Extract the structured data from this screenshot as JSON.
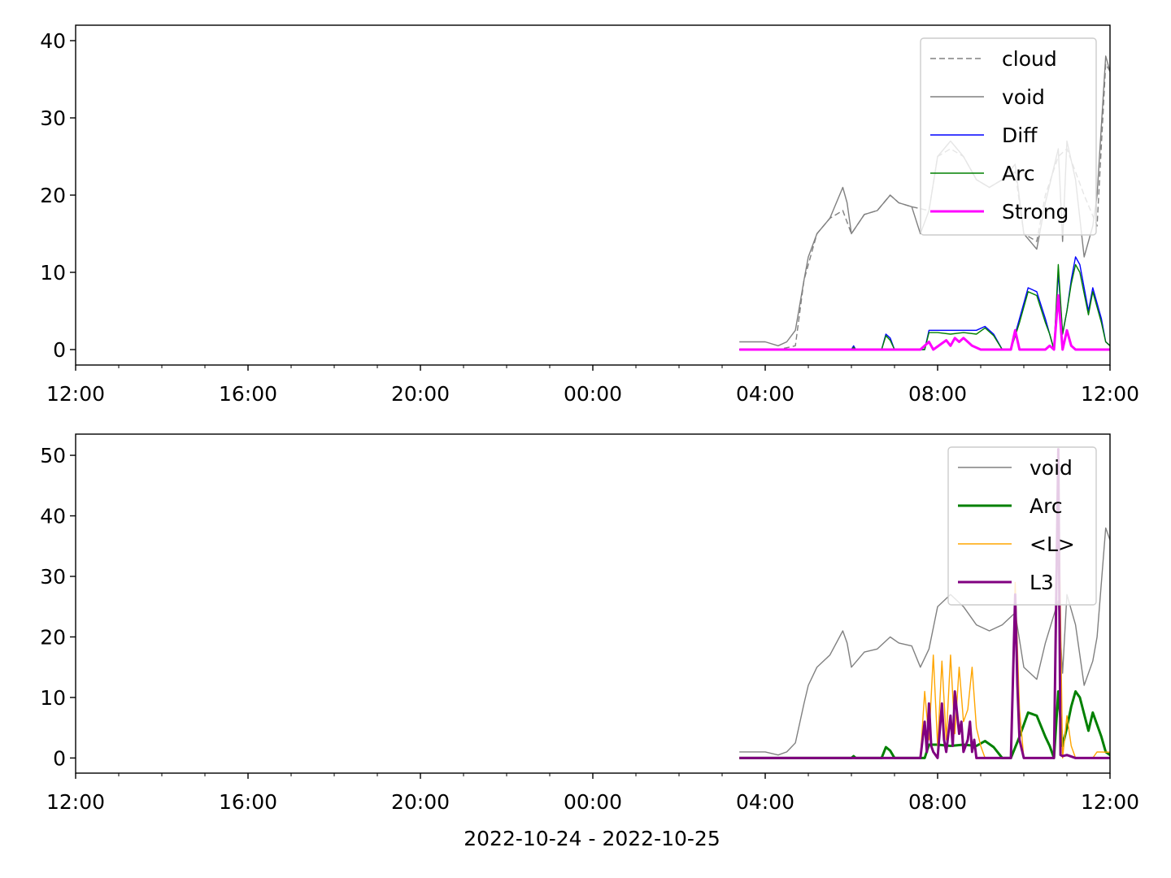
{
  "figure": {
    "xlabel": "2022-10-24 - 2022-10-25"
  },
  "chart_data": [
    {
      "type": "line",
      "x_ticks": [
        "12:00",
        "16:00",
        "20:00",
        "00:00",
        "04:00",
        "08:00",
        "12:00"
      ],
      "x_tick_hours": [
        0,
        4,
        8,
        12,
        16,
        20,
        24
      ],
      "xlim_hours_from_2022-10-24T12:00": [
        0,
        24
      ],
      "ylim": [
        -2,
        42
      ],
      "y_ticks": [
        0,
        10,
        20,
        30,
        40
      ],
      "legend_position": "top-right",
      "grid": false,
      "series": [
        {
          "name": "cloud",
          "color": "#808080",
          "style": "dashed",
          "width": 1.4,
          "x": [
            15.4,
            16.3,
            16.7,
            16.9,
            17.2,
            17.5,
            17.8,
            18.0,
            18.3,
            18.6,
            18.9,
            19.1,
            19.4,
            19.8,
            20.0,
            20.3,
            20.6,
            20.9,
            21.2,
            21.5,
            21.8,
            22.0,
            22.3,
            22.5,
            22.8,
            23.0,
            23.4,
            23.7,
            23.9,
            24.1,
            24.4,
            24.7,
            25.0,
            25.3,
            25.6,
            25.8,
            26.1,
            26.3,
            26.6,
            26.9,
            27.1,
            27.4,
            27.7,
            28.0,
            28.3,
            28.5,
            28.7,
            29.0,
            30.0
          ],
          "y": [
            0,
            0,
            0.5,
            9,
            15,
            17,
            18,
            15,
            17.5,
            18,
            20,
            19,
            18.5,
            18,
            25,
            26,
            25,
            22,
            21,
            22,
            23,
            15,
            14,
            20,
            25,
            26,
            20,
            16,
            37,
            35,
            30,
            26,
            22,
            20,
            18,
            15,
            15,
            20,
            28,
            32,
            31,
            32,
            35,
            32,
            22,
            12,
            2,
            0,
            0
          ]
        },
        {
          "name": "void",
          "color": "#808080",
          "style": "solid",
          "width": 1.4,
          "x": [
            15.4,
            16.0,
            16.3,
            16.5,
            16.7,
            16.9,
            17.0,
            17.2,
            17.5,
            17.8,
            17.9,
            18.0,
            18.3,
            18.6,
            18.9,
            19.1,
            19.4,
            19.6,
            19.8,
            20.0,
            20.3,
            20.6,
            20.9,
            21.2,
            21.5,
            21.8,
            22.0,
            22.3,
            22.5,
            22.8,
            22.9,
            23.0,
            23.2,
            23.4,
            23.6,
            23.7,
            23.9,
            24.0,
            24.1,
            24.4,
            24.7,
            25.0,
            25.3,
            25.6,
            25.8,
            26.1,
            26.3,
            26.6,
            26.9,
            27.1,
            27.4,
            27.6,
            27.7,
            27.9,
            28.0,
            28.3,
            28.5,
            28.7,
            28.9,
            29.0,
            30.0
          ],
          "y": [
            1,
            1,
            0.5,
            1,
            2.5,
            9,
            12,
            15,
            17,
            21,
            19,
            15,
            17.5,
            18,
            20,
            19,
            18.5,
            15,
            18,
            25,
            27,
            25,
            22,
            21,
            22,
            24,
            15,
            13,
            19,
            26,
            14,
            27,
            22,
            12,
            16,
            20,
            38,
            36,
            35,
            30,
            26,
            22,
            20,
            17,
            15,
            15,
            20,
            28,
            32,
            34,
            32,
            40,
            35,
            32,
            22,
            14,
            9,
            2,
            0,
            0,
            0
          ]
        },
        {
          "name": "Diff",
          "color": "#0000ff",
          "style": "solid",
          "width": 1.4,
          "x": [
            15.4,
            18.0,
            18.05,
            18.1,
            18.7,
            18.8,
            18.9,
            19.0,
            19.7,
            19.8,
            20.0,
            20.3,
            20.6,
            20.9,
            21.1,
            21.3,
            21.5,
            21.7,
            21.9,
            22.1,
            22.3,
            22.5,
            22.6,
            22.7,
            22.8,
            22.9,
            23.0,
            23.1,
            23.2,
            23.3,
            23.5,
            23.6,
            23.7,
            23.8,
            23.9,
            24.1,
            24.3,
            30.0
          ],
          "y": [
            0,
            0,
            0.5,
            0,
            0,
            2,
            1.5,
            0,
            0,
            2.5,
            2.5,
            2.5,
            2.5,
            2.5,
            3,
            2,
            0,
            0,
            4,
            8,
            7.5,
            4,
            2,
            0,
            10,
            2,
            5,
            9,
            12,
            11,
            5,
            8,
            6,
            4,
            1,
            0,
            0,
            0
          ]
        },
        {
          "name": "Arc",
          "color": "#008000",
          "style": "solid",
          "width": 1.4,
          "x": [
            15.4,
            18.0,
            18.05,
            18.1,
            18.7,
            18.8,
            18.9,
            19.0,
            19.7,
            19.8,
            20.0,
            20.3,
            20.6,
            20.9,
            21.1,
            21.3,
            21.5,
            21.7,
            21.9,
            22.1,
            22.3,
            22.5,
            22.6,
            22.7,
            22.8,
            22.9,
            23.0,
            23.1,
            23.2,
            23.3,
            23.5,
            23.6,
            23.7,
            23.8,
            23.9,
            24.1,
            24.3,
            30.0
          ],
          "y": [
            0,
            0,
            0.3,
            0,
            0,
            1.8,
            1.2,
            0,
            0,
            2.2,
            2.2,
            2,
            2.2,
            2,
            2.8,
            1.8,
            0,
            0,
            3.5,
            7.5,
            7,
            3.5,
            2,
            0,
            11,
            2,
            5,
            8.5,
            11,
            10,
            4.5,
            7.5,
            5.5,
            3.5,
            1,
            0,
            0,
            0
          ]
        },
        {
          "name": "Strong",
          "color": "#ff00ff",
          "style": "solid",
          "width": 3,
          "x": [
            15.4,
            19.6,
            19.8,
            19.9,
            20.1,
            20.2,
            20.3,
            20.4,
            20.5,
            20.6,
            20.7,
            20.8,
            21.0,
            21.7,
            21.8,
            21.9,
            22.5,
            22.6,
            22.7,
            22.8,
            22.9,
            23.0,
            23.1,
            23.2,
            24.5,
            30.0
          ],
          "y": [
            0,
            0,
            1,
            0,
            0.8,
            1.2,
            0.5,
            1.5,
            1,
            1.5,
            1,
            0.5,
            0,
            0,
            2.5,
            0,
            0,
            0.5,
            0,
            7,
            0,
            2.5,
            0.5,
            0,
            0,
            0
          ]
        }
      ]
    },
    {
      "type": "line",
      "x_ticks": [
        "12:00",
        "16:00",
        "20:00",
        "00:00",
        "04:00",
        "08:00",
        "12:00"
      ],
      "x_tick_hours": [
        0,
        4,
        8,
        12,
        16,
        20,
        24
      ],
      "xlim_hours_from_2022-10-24T12:00": [
        0,
        24
      ],
      "ylim": [
        -2.5,
        53.5
      ],
      "y_ticks": [
        0,
        10,
        20,
        30,
        40,
        50
      ],
      "legend_position": "top-right",
      "grid": false,
      "series": [
        {
          "name": "void",
          "color": "#808080",
          "style": "solid",
          "width": 1.4,
          "x": [
            15.4,
            16.0,
            16.3,
            16.5,
            16.7,
            16.9,
            17.0,
            17.2,
            17.5,
            17.8,
            17.9,
            18.0,
            18.3,
            18.6,
            18.9,
            19.1,
            19.4,
            19.6,
            19.8,
            20.0,
            20.3,
            20.6,
            20.9,
            21.2,
            21.5,
            21.8,
            22.0,
            22.3,
            22.5,
            22.8,
            22.9,
            23.0,
            23.2,
            23.4,
            23.6,
            23.7,
            23.9,
            24.0,
            24.1,
            24.4,
            24.7,
            25.0,
            25.3,
            25.6,
            25.8,
            26.1,
            26.3,
            26.6,
            26.9,
            27.1,
            27.4,
            27.6,
            27.7,
            27.9,
            28.0,
            28.3,
            28.5,
            28.7,
            28.9,
            29.0,
            30.0
          ],
          "y": [
            1,
            1,
            0.5,
            1,
            2.5,
            9,
            12,
            15,
            17,
            21,
            19,
            15,
            17.5,
            18,
            20,
            19,
            18.5,
            15,
            18,
            25,
            27,
            25,
            22,
            21,
            22,
            24,
            15,
            13,
            19,
            26,
            14,
            27,
            22,
            12,
            16,
            20,
            38,
            36,
            35,
            30,
            26,
            22,
            20,
            17,
            15,
            15,
            20,
            28,
            32,
            34,
            32,
            40,
            35,
            32,
            22,
            14,
            9,
            2,
            0,
            0,
            0
          ]
        },
        {
          "name": "Arc",
          "color": "#008000",
          "style": "solid",
          "width": 3,
          "x": [
            15.4,
            18.0,
            18.05,
            18.1,
            18.7,
            18.8,
            18.9,
            19.0,
            19.7,
            19.8,
            20.0,
            20.3,
            20.6,
            20.9,
            21.1,
            21.3,
            21.5,
            21.7,
            21.9,
            22.1,
            22.3,
            22.5,
            22.6,
            22.7,
            22.8,
            22.9,
            23.0,
            23.1,
            23.2,
            23.3,
            23.5,
            23.6,
            23.7,
            23.8,
            23.9,
            24.1,
            24.3,
            30.0
          ],
          "y": [
            0,
            0,
            0.3,
            0,
            0,
            1.8,
            1.2,
            0,
            0,
            2.2,
            2.2,
            2,
            2.2,
            2,
            2.8,
            1.8,
            0,
            0,
            3.5,
            7.5,
            7,
            3.5,
            2,
            0,
            11,
            2,
            5,
            8.5,
            11,
            10,
            4.5,
            7.5,
            5.5,
            3.5,
            1,
            0,
            0,
            0
          ]
        },
        {
          "name": "<L>",
          "color": "#ffa500",
          "style": "solid",
          "width": 1.4,
          "x": [
            15.4,
            19.6,
            19.7,
            19.8,
            19.9,
            20.0,
            20.1,
            20.2,
            20.3,
            20.4,
            20.5,
            20.6,
            20.7,
            20.8,
            20.9,
            21.0,
            21.1,
            21.7,
            21.8,
            21.9,
            22.0,
            22.7,
            22.8,
            22.9,
            23.0,
            23.1,
            23.2,
            23.6,
            23.7,
            30.0
          ],
          "y": [
            0,
            0,
            11,
            3,
            17,
            2,
            16,
            3,
            17,
            4,
            15,
            6,
            8,
            15,
            5,
            2,
            0,
            0,
            29,
            8,
            0,
            0,
            48,
            0,
            7,
            2,
            0,
            0,
            1,
            0
          ]
        },
        {
          "name": "L3",
          "color": "#800080",
          "style": "solid",
          "width": 3,
          "x": [
            15.4,
            19.6,
            19.7,
            19.75,
            19.8,
            19.85,
            19.9,
            20.0,
            20.1,
            20.15,
            20.2,
            20.3,
            20.35,
            20.4,
            20.5,
            20.55,
            20.6,
            20.7,
            20.75,
            20.8,
            20.85,
            20.9,
            21.0,
            21.7,
            21.8,
            21.85,
            21.9,
            22.0,
            22.7,
            22.8,
            22.85,
            22.9,
            23.0,
            23.2,
            30.0
          ],
          "y": [
            0,
            0,
            6,
            1,
            9,
            2,
            1,
            0,
            9,
            3,
            1,
            7,
            2,
            11,
            4,
            6,
            1,
            3,
            6,
            1,
            3,
            0,
            0,
            0,
            27,
            12,
            3,
            0,
            0,
            51,
            0.5,
            0.3,
            0.5,
            0,
            0
          ]
        }
      ]
    }
  ]
}
